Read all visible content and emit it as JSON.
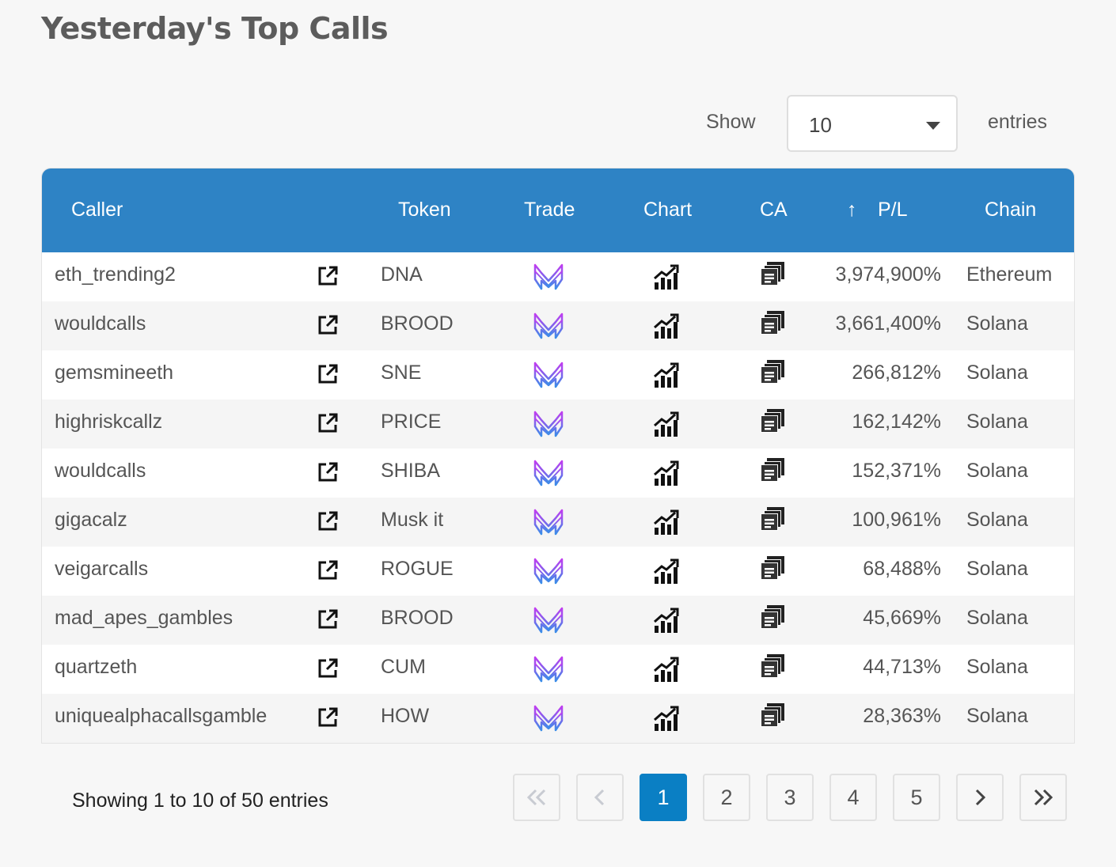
{
  "title": "Yesterday's Top Calls",
  "length_menu": {
    "show_label": "Show",
    "selected": "10",
    "entries_label": "entries"
  },
  "columns": {
    "caller": "Caller",
    "token": "Token",
    "trade": "Trade",
    "chart": "Chart",
    "ca": "CA",
    "pl": "P/L",
    "chain": "Chain"
  },
  "sort_indicator": "↑",
  "rows": [
    {
      "caller": "eth_trending2",
      "token": "DNA",
      "pl": "3,974,900%",
      "chain": "Ethereum"
    },
    {
      "caller": "wouldcalls",
      "token": "BROOD",
      "pl": "3,661,400%",
      "chain": "Solana"
    },
    {
      "caller": "gemsmineeth",
      "token": "SNE",
      "pl": "266,812%",
      "chain": "Solana"
    },
    {
      "caller": "highriskcallz",
      "token": "PRICE",
      "pl": "162,142%",
      "chain": "Solana"
    },
    {
      "caller": "wouldcalls",
      "token": "SHIBA",
      "pl": "152,371%",
      "chain": "Solana"
    },
    {
      "caller": "gigacalz",
      "token": "Musk it",
      "pl": "100,961%",
      "chain": "Solana"
    },
    {
      "caller": "veigarcalls",
      "token": "ROGUE",
      "pl": "68,488%",
      "chain": "Solana"
    },
    {
      "caller": "mad_apes_gambles",
      "token": "BROOD",
      "pl": "45,669%",
      "chain": "Solana"
    },
    {
      "caller": "quartzeth",
      "token": "CUM",
      "pl": "44,713%",
      "chain": "Solana"
    },
    {
      "caller": "uniquealphacallsgamble",
      "token": "HOW",
      "pl": "28,363%",
      "chain": "Solana"
    }
  ],
  "row_icons": {
    "link": "external-link-icon",
    "trade": "trade-logo-icon",
    "chart": "chart-trend-icon",
    "ca": "copy-icon"
  },
  "footer": {
    "info": "Showing 1 to 10 of 50 entries"
  },
  "pagination": {
    "first_icon": "double-chevron-left-icon",
    "prev_icon": "chevron-left-icon",
    "pages": [
      "1",
      "2",
      "3",
      "4",
      "5"
    ],
    "current": "1",
    "next_icon": "chevron-right-icon",
    "last_icon": "double-chevron-right-icon"
  },
  "colors": {
    "header_bg": "#2e83c5",
    "active_page": "#0a7fc4",
    "trade_logo_gradient": [
      "#c13cf0",
      "#3a8de8"
    ]
  }
}
